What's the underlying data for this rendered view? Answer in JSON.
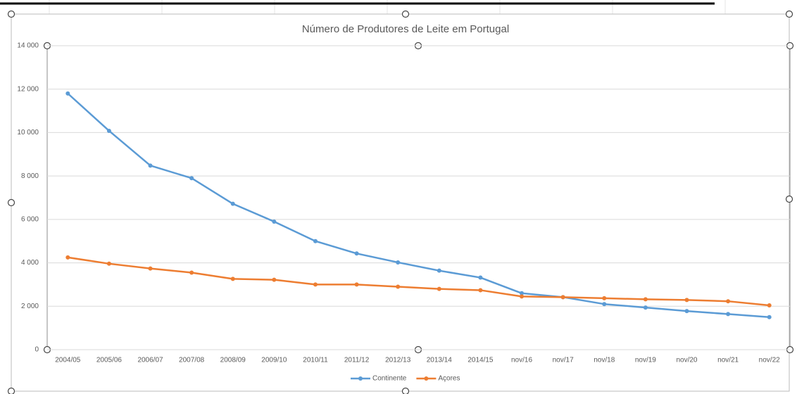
{
  "chart_data": {
    "type": "line",
    "title": "Número de Produtores de Leite em Portugal",
    "categories": [
      "2004/05",
      "2005/06",
      "2006/07",
      "2007/08",
      "2008/09",
      "2009/10",
      "2010/11",
      "2011/12",
      "2012/13",
      "2013/14",
      "2014/15",
      "nov/16",
      "nov/17",
      "nov/18",
      "nov/19",
      "nov/20",
      "nov/21",
      "nov/22"
    ],
    "series": [
      {
        "name": "Continente",
        "color": "#5b9bd5",
        "values": [
          11800,
          10080,
          8480,
          7900,
          6720,
          5900,
          5000,
          4430,
          4020,
          3640,
          3320,
          2600,
          2420,
          2100,
          1940,
          1780,
          1640,
          1500
        ]
      },
      {
        "name": "Açores",
        "color": "#ed7d31",
        "values": [
          4250,
          3960,
          3740,
          3550,
          3260,
          3220,
          3000,
          3000,
          2900,
          2800,
          2740,
          2450,
          2420,
          2370,
          2320,
          2290,
          2230,
          2040
        ]
      }
    ],
    "ylim": [
      0,
      14000
    ],
    "yticks": [
      0,
      {
        "value": 2000,
        "label": "2 000"
      },
      {
        "value": 4000,
        "label": "4 000"
      },
      {
        "value": 6000,
        "label": "6 000"
      },
      {
        "value": 8000,
        "label": "8 000"
      },
      {
        "value": 10000,
        "label": "10 000"
      },
      {
        "value": 12000,
        "label": "12 000"
      },
      {
        "value": 14000,
        "label": "14 000"
      }
    ],
    "grid": true,
    "legend": "bottom"
  }
}
